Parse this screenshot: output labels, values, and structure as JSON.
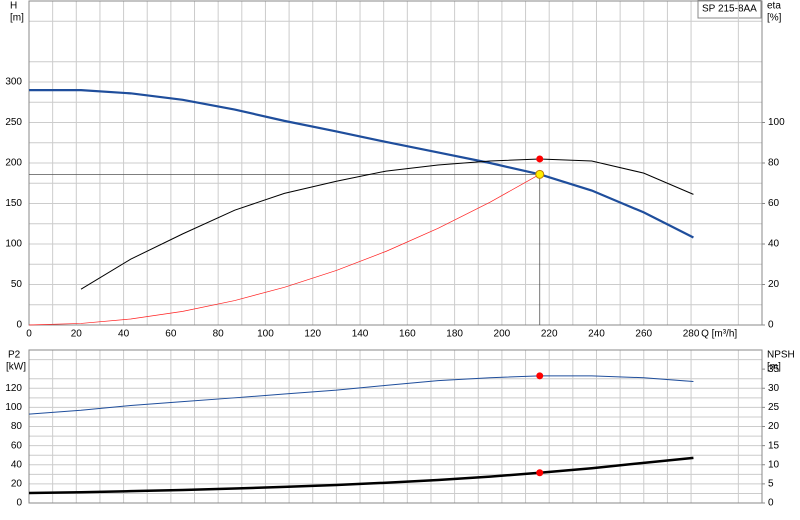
{
  "product": "SP 215-8AA",
  "chart_data": [
    {
      "type": "line",
      "ylabel": "H",
      "yunit": "[m]",
      "y2label": "eta",
      "y2unit": "[%]",
      "xlabel": "Q [m³/h]",
      "x": [
        0,
        22,
        43,
        65,
        87,
        108,
        130,
        151,
        173,
        195,
        216,
        238,
        260,
        281
      ],
      "xlim": [
        0,
        310
      ],
      "xticks": [
        0,
        20,
        40,
        60,
        80,
        100,
        120,
        140,
        160,
        180,
        200,
        220,
        240,
        260,
        280
      ],
      "ylim": [
        0,
        400
      ],
      "yticks": [
        0,
        50,
        100,
        150,
        200,
        250,
        300
      ],
      "y2lim": [
        0,
        160
      ],
      "y2ticks": [
        0,
        20,
        40,
        60,
        80,
        100
      ],
      "grid": true,
      "series": [
        {
          "color": "#1f4e9c",
          "values": [
            290,
            290,
            286,
            278,
            266,
            252,
            239,
            226,
            213,
            200,
            186,
            166,
            139,
            108
          ]
        },
        {
          "color": "#000000",
          "axis": "y2",
          "values": [
            null,
            17.7,
            32.5,
            45,
            56.7,
            65,
            71,
            76,
            79,
            81,
            82,
            81,
            75,
            64.5
          ]
        },
        {
          "color": "#ff2020",
          "values": [
            0,
            1.9,
            7.4,
            16.8,
            30.2,
            46.5,
            67.4,
            90.9,
            119.3,
            151.6,
            186,
            null,
            null,
            null
          ]
        }
      ],
      "duty_point": {
        "x": 216,
        "y": 186
      }
    },
    {
      "type": "line",
      "ylabel": "P2",
      "yunit": "[kW]",
      "y2label": "NPSH",
      "y2unit": "[m]",
      "x": [
        0,
        22,
        43,
        65,
        87,
        108,
        130,
        151,
        173,
        195,
        216,
        238,
        260,
        281
      ],
      "xlim": [
        0,
        310
      ],
      "ylim": [
        0,
        160
      ],
      "yticks": [
        0,
        20,
        40,
        60,
        80,
        100,
        120
      ],
      "y2lim": [
        0,
        40
      ],
      "y2ticks": [
        0,
        5,
        10,
        15,
        20,
        25,
        30,
        35
      ],
      "grid": true,
      "series": [
        {
          "color": "#1f4e9c",
          "values": [
            93,
            97,
            102,
            106,
            110,
            114,
            118,
            123,
            128,
            131,
            133,
            133,
            131,
            127
          ]
        },
        {
          "color": "#000000",
          "axis": "y2",
          "values": [
            2.6,
            2.8,
            3.1,
            3.4,
            3.8,
            4.2,
            4.7,
            5.3,
            6.0,
            6.9,
            7.9,
            9.1,
            10.5,
            11.8
          ]
        }
      ]
    }
  ]
}
